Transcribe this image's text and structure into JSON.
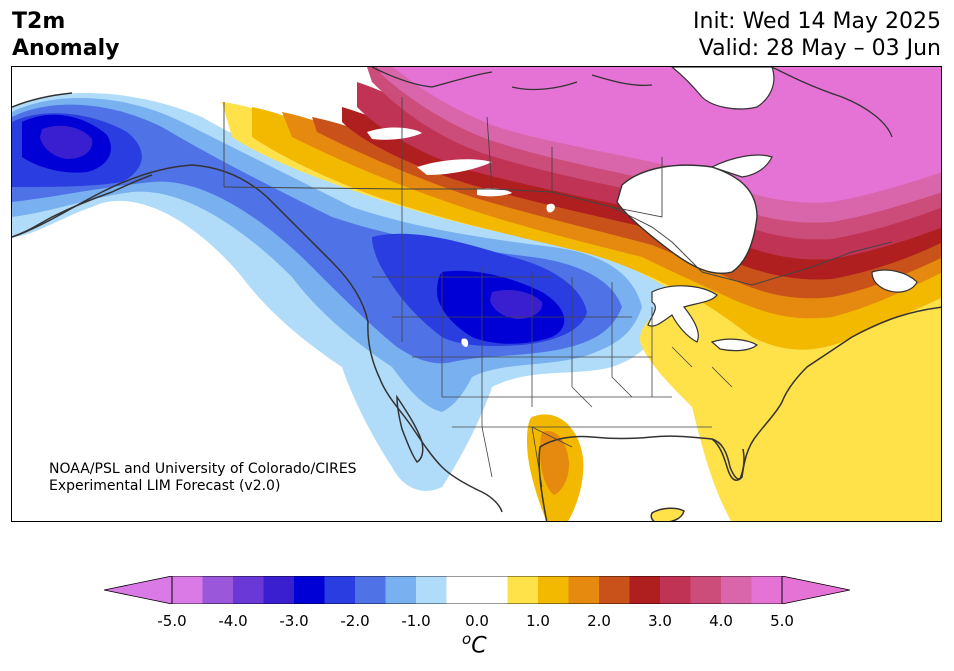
{
  "header": {
    "title_line1": "T2m",
    "title_line2": "Anomaly",
    "init_text": "Init: Wed 14 May 2025",
    "valid_text": "Valid: 28 May – 03 Jun"
  },
  "credit": {
    "line1": "NOAA/PSL and University of Colorado/CIRES",
    "line2": "Experimental LIM Forecast (v2.0)"
  },
  "colorbar": {
    "tick_labels": [
      "-5.0",
      "-4.0",
      "-3.0",
      "-2.0",
      "-1.0",
      "0.0",
      "1.0",
      "2.0",
      "3.0",
      "4.0",
      "5.0"
    ],
    "units_base": "C",
    "units_sup": "o",
    "levels_colors": [
      "#d97ae6",
      "#9b57d9",
      "#6a38d6",
      "#3a1fd1",
      "#0000d6",
      "#2a3de0",
      "#4f73e6",
      "#78b0f0",
      "#b0dcfa",
      "#ffffff",
      "#ffffff",
      "#ffe14a",
      "#f3b800",
      "#e58a0e",
      "#c9521a",
      "#b01f20",
      "#c03355",
      "#cc4c7a",
      "#d966aa",
      "#e573d6"
    ],
    "extend_low_color": "#d97ae6",
    "extend_high_color": "#e573d6"
  },
  "map": {
    "region": "North America",
    "colors": {
      "ocean": "#ffffff",
      "coastline": "#333333",
      "borders": "#444444"
    }
  }
}
